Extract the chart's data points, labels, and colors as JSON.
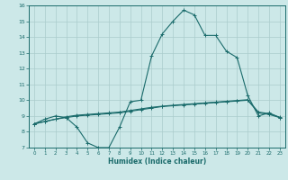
{
  "title": "",
  "xlabel": "Humidex (Indice chaleur)",
  "ylabel": "",
  "bg_color": "#cce8e8",
  "grid_color": "#aacccc",
  "line_color": "#1a6b6b",
  "x_values": [
    0,
    1,
    2,
    3,
    4,
    5,
    6,
    7,
    8,
    9,
    10,
    11,
    12,
    13,
    14,
    15,
    16,
    17,
    18,
    19,
    20,
    21,
    22,
    23
  ],
  "curve1": [
    8.5,
    8.8,
    9.0,
    8.9,
    8.3,
    7.3,
    7.0,
    7.0,
    8.3,
    9.9,
    10.0,
    12.8,
    14.2,
    15.0,
    15.7,
    15.4,
    14.1,
    14.1,
    13.1,
    12.7,
    10.3,
    9.0,
    9.2,
    8.9
  ],
  "curve2": [
    8.5,
    8.65,
    8.8,
    8.9,
    9.0,
    9.05,
    9.1,
    9.15,
    9.2,
    9.3,
    9.4,
    9.5,
    9.6,
    9.65,
    9.7,
    9.75,
    9.8,
    9.85,
    9.9,
    9.95,
    10.0,
    9.2,
    9.1,
    8.9
  ],
  "curve3": [
    8.5,
    8.65,
    8.8,
    8.95,
    9.05,
    9.1,
    9.15,
    9.2,
    9.25,
    9.35,
    9.45,
    9.55,
    9.62,
    9.68,
    9.73,
    9.78,
    9.83,
    9.88,
    9.93,
    9.98,
    10.03,
    9.25,
    9.15,
    8.92
  ],
  "ylim": [
    7,
    16
  ],
  "yticks": [
    7,
    8,
    9,
    10,
    11,
    12,
    13,
    14,
    15,
    16
  ],
  "xticks": [
    0,
    1,
    2,
    3,
    4,
    5,
    6,
    7,
    8,
    9,
    10,
    11,
    12,
    13,
    14,
    15,
    16,
    17,
    18,
    19,
    20,
    21,
    22,
    23
  ]
}
